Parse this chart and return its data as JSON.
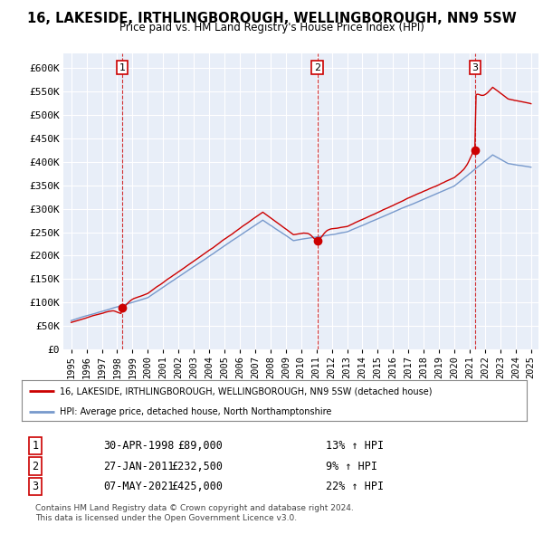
{
  "title": "16, LAKESIDE, IRTHLINGBOROUGH, WELLINGBOROUGH, NN9 5SW",
  "subtitle": "Price paid vs. HM Land Registry's House Price Index (HPI)",
  "legend_label_red": "16, LAKESIDE, IRTHLINGBOROUGH, WELLINGBOROUGH, NN9 5SW (detached house)",
  "legend_label_blue": "HPI: Average price, detached house, North Northamptonshire",
  "footer1": "Contains HM Land Registry data © Crown copyright and database right 2024.",
  "footer2": "This data is licensed under the Open Government Licence v3.0.",
  "sales": [
    {
      "num": 1,
      "date": "30-APR-1998",
      "price": 89000,
      "pct": "13%",
      "dir": "↑",
      "x_year": 1998.33
    },
    {
      "num": 2,
      "date": "27-JAN-2011",
      "price": 232500,
      "pct": "9%",
      "dir": "↑",
      "x_year": 2011.07
    },
    {
      "num": 3,
      "date": "07-MAY-2021",
      "price": 425000,
      "pct": "22%",
      "dir": "↑",
      "x_year": 2021.35
    }
  ],
  "ylim": [
    0,
    630000
  ],
  "yticks": [
    0,
    50000,
    100000,
    150000,
    200000,
    250000,
    300000,
    350000,
    400000,
    450000,
    500000,
    550000,
    600000
  ],
  "ytick_labels": [
    "£0",
    "£50K",
    "£100K",
    "£150K",
    "£200K",
    "£250K",
    "£300K",
    "£350K",
    "£400K",
    "£450K",
    "£500K",
    "£550K",
    "£600K"
  ],
  "xlim": [
    1994.5,
    2025.5
  ],
  "background_color": "#ffffff",
  "chart_bg_color": "#e8eef8",
  "grid_color": "#ffffff",
  "red_color": "#cc0000",
  "blue_color": "#7799cc",
  "sale_dot_color": "#cc0000",
  "dashed_line_color": "#cc0000"
}
